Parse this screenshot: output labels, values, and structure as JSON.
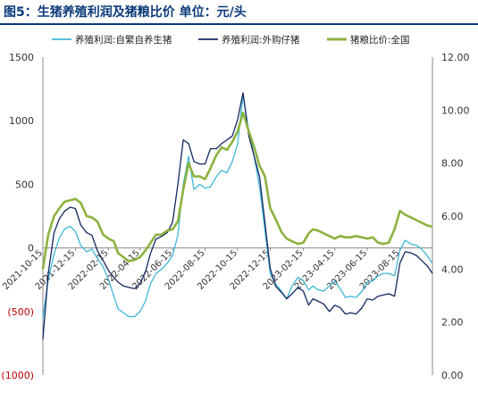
{
  "title": "图5：生猪养殖利润及猪粮比价 单位：元/头",
  "colors": {
    "title": "#0b3a7a",
    "series1": "#3fb7d6",
    "series2": "#14285f",
    "series3": "#8cb23f",
    "negative": "#c00000"
  },
  "chart_data": {
    "type": "line",
    "title": "图5：生猪养殖利润及猪粮比价 单位：元/头",
    "left_axis": {
      "range": [
        -1000,
        1500
      ],
      "ticks": [
        1500,
        1000,
        500,
        0,
        -500,
        -1000
      ],
      "tick_labels": [
        "1500",
        "1000",
        "500",
        "0",
        "(500)",
        "(1000)"
      ]
    },
    "right_axis": {
      "range": [
        0,
        12
      ],
      "ticks": [
        12,
        10,
        8,
        6,
        4,
        2,
        0
      ],
      "tick_labels": [
        "12.00",
        "10.00",
        "8.00",
        "6.00",
        "4.00",
        "2.00",
        "0.00"
      ]
    },
    "x_range": [
      "2021-10-15",
      "2023-10-15"
    ],
    "x_tick_labels": [
      "2021-10-15",
      "2021-12-15",
      "2022-02-15",
      "2022-04-15",
      "2022-06-15",
      "2022-08-15",
      "2022-10-15",
      "2022-12-15",
      "2023-02-15",
      "2023-04-15",
      "2023-06-15",
      "2023-08-15"
    ],
    "legend_position": "top",
    "grid": false,
    "series": [
      {
        "name": "养殖利润:自繁自养生猪",
        "axis": "left",
        "points": [
          [
            "2021-10-15",
            -550
          ],
          [
            "2021-10-25",
            -250
          ],
          [
            "2021-11-05",
            -50
          ],
          [
            "2021-11-15",
            80
          ],
          [
            "2021-11-25",
            150
          ],
          [
            "2021-12-05",
            170
          ],
          [
            "2021-12-15",
            130
          ],
          [
            "2021-12-25",
            20
          ],
          [
            "2022-01-05",
            -30
          ],
          [
            "2022-01-15",
            -10
          ],
          [
            "2022-01-25",
            -80
          ],
          [
            "2022-02-05",
            -150
          ],
          [
            "2022-02-15",
            -250
          ],
          [
            "2022-02-25",
            -380
          ],
          [
            "2022-03-05",
            -480
          ],
          [
            "2022-03-15",
            -510
          ],
          [
            "2022-03-25",
            -540
          ],
          [
            "2022-04-05",
            -540
          ],
          [
            "2022-04-15",
            -500
          ],
          [
            "2022-04-25",
            -420
          ],
          [
            "2022-05-05",
            -280
          ],
          [
            "2022-05-15",
            -200
          ],
          [
            "2022-05-25",
            -170
          ],
          [
            "2022-06-05",
            -120
          ],
          [
            "2022-06-15",
            -60
          ],
          [
            "2022-06-25",
            100
          ],
          [
            "2022-07-05",
            500
          ],
          [
            "2022-07-15",
            720
          ],
          [
            "2022-07-25",
            460
          ],
          [
            "2022-08-05",
            500
          ],
          [
            "2022-08-15",
            470
          ],
          [
            "2022-08-25",
            480
          ],
          [
            "2022-09-05",
            560
          ],
          [
            "2022-09-15",
            610
          ],
          [
            "2022-09-25",
            590
          ],
          [
            "2022-10-05",
            680
          ],
          [
            "2022-10-15",
            820
          ],
          [
            "2022-10-25",
            1200
          ],
          [
            "2022-11-05",
            920
          ],
          [
            "2022-11-15",
            720
          ],
          [
            "2022-11-25",
            480
          ],
          [
            "2022-12-05",
            140
          ],
          [
            "2022-12-15",
            -200
          ],
          [
            "2022-12-25",
            -280
          ],
          [
            "2023-01-05",
            -340
          ],
          [
            "2023-01-15",
            -400
          ],
          [
            "2023-01-25",
            -300
          ],
          [
            "2023-02-05",
            -230
          ],
          [
            "2023-02-15",
            -260
          ],
          [
            "2023-02-25",
            -330
          ],
          [
            "2023-03-05",
            -300
          ],
          [
            "2023-03-15",
            -330
          ],
          [
            "2023-03-25",
            -340
          ],
          [
            "2023-04-05",
            -300
          ],
          [
            "2023-04-15",
            -260
          ],
          [
            "2023-04-25",
            -320
          ],
          [
            "2023-05-05",
            -390
          ],
          [
            "2023-05-15",
            -380
          ],
          [
            "2023-05-25",
            -390
          ],
          [
            "2023-06-05",
            -340
          ],
          [
            "2023-06-15",
            -270
          ],
          [
            "2023-06-25",
            -260
          ],
          [
            "2023-07-05",
            -220
          ],
          [
            "2023-07-15",
            -200
          ],
          [
            "2023-07-25",
            -200
          ],
          [
            "2023-08-05",
            -220
          ],
          [
            "2023-08-15",
            -20
          ],
          [
            "2023-08-25",
            60
          ],
          [
            "2023-09-05",
            30
          ],
          [
            "2023-09-15",
            20
          ],
          [
            "2023-09-25",
            -10
          ],
          [
            "2023-10-05",
            -60
          ],
          [
            "2023-10-15",
            -120
          ]
        ]
      },
      {
        "name": "养殖利润:外购仔猪",
        "axis": "left",
        "points": [
          [
            "2021-10-15",
            -720
          ],
          [
            "2021-10-25",
            -200
          ],
          [
            "2021-11-05",
            120
          ],
          [
            "2021-11-15",
            230
          ],
          [
            "2021-11-25",
            290
          ],
          [
            "2021-12-05",
            320
          ],
          [
            "2021-12-15",
            310
          ],
          [
            "2021-12-25",
            180
          ],
          [
            "2022-01-05",
            120
          ],
          [
            "2022-01-15",
            100
          ],
          [
            "2022-01-25",
            -20
          ],
          [
            "2022-02-05",
            -100
          ],
          [
            "2022-02-15",
            -180
          ],
          [
            "2022-02-25",
            -230
          ],
          [
            "2022-03-05",
            -270
          ],
          [
            "2022-03-15",
            -300
          ],
          [
            "2022-03-25",
            -310
          ],
          [
            "2022-04-05",
            -320
          ],
          [
            "2022-04-15",
            -280
          ],
          [
            "2022-04-25",
            -190
          ],
          [
            "2022-05-05",
            -40
          ],
          [
            "2022-05-15",
            70
          ],
          [
            "2022-05-25",
            90
          ],
          [
            "2022-06-05",
            120
          ],
          [
            "2022-06-15",
            200
          ],
          [
            "2022-06-25",
            500
          ],
          [
            "2022-07-05",
            850
          ],
          [
            "2022-07-15",
            820
          ],
          [
            "2022-07-25",
            680
          ],
          [
            "2022-08-05",
            660
          ],
          [
            "2022-08-15",
            660
          ],
          [
            "2022-08-25",
            780
          ],
          [
            "2022-09-05",
            780
          ],
          [
            "2022-09-15",
            820
          ],
          [
            "2022-09-25",
            850
          ],
          [
            "2022-10-05",
            880
          ],
          [
            "2022-10-15",
            1010
          ],
          [
            "2022-10-25",
            1220
          ],
          [
            "2022-11-05",
            880
          ],
          [
            "2022-11-15",
            720
          ],
          [
            "2022-11-25",
            560
          ],
          [
            "2022-12-05",
            200
          ],
          [
            "2022-12-15",
            -160
          ],
          [
            "2022-12-25",
            -300
          ],
          [
            "2023-01-05",
            -350
          ],
          [
            "2023-01-15",
            -400
          ],
          [
            "2023-01-25",
            -360
          ],
          [
            "2023-02-05",
            -310
          ],
          [
            "2023-02-15",
            -340
          ],
          [
            "2023-02-25",
            -450
          ],
          [
            "2023-03-05",
            -400
          ],
          [
            "2023-03-15",
            -420
          ],
          [
            "2023-03-25",
            -440
          ],
          [
            "2023-04-05",
            -500
          ],
          [
            "2023-04-15",
            -450
          ],
          [
            "2023-04-25",
            -470
          ],
          [
            "2023-05-05",
            -520
          ],
          [
            "2023-05-15",
            -510
          ],
          [
            "2023-05-25",
            -520
          ],
          [
            "2023-06-05",
            -470
          ],
          [
            "2023-06-15",
            -400
          ],
          [
            "2023-06-25",
            -410
          ],
          [
            "2023-07-05",
            -380
          ],
          [
            "2023-07-15",
            -370
          ],
          [
            "2023-07-25",
            -360
          ],
          [
            "2023-08-05",
            -380
          ],
          [
            "2023-08-15",
            -120
          ],
          [
            "2023-08-25",
            -30
          ],
          [
            "2023-09-05",
            -40
          ],
          [
            "2023-09-15",
            -60
          ],
          [
            "2023-09-25",
            -100
          ],
          [
            "2023-10-05",
            -140
          ],
          [
            "2023-10-15",
            -200
          ]
        ]
      },
      {
        "name": "猪粮比价:全国",
        "axis": "right",
        "points": [
          [
            "2021-10-15",
            4.0
          ],
          [
            "2021-10-25",
            5.3
          ],
          [
            "2021-11-05",
            6.0
          ],
          [
            "2021-11-15",
            6.3
          ],
          [
            "2021-11-25",
            6.55
          ],
          [
            "2021-12-05",
            6.6
          ],
          [
            "2021-12-15",
            6.65
          ],
          [
            "2021-12-25",
            6.5
          ],
          [
            "2022-01-05",
            6.0
          ],
          [
            "2022-01-15",
            5.95
          ],
          [
            "2022-01-25",
            5.8
          ],
          [
            "2022-02-05",
            5.3
          ],
          [
            "2022-02-15",
            5.15
          ],
          [
            "2022-02-25",
            5.05
          ],
          [
            "2022-03-05",
            4.6
          ],
          [
            "2022-03-15",
            4.45
          ],
          [
            "2022-03-25",
            4.3
          ],
          [
            "2022-04-05",
            4.35
          ],
          [
            "2022-04-15",
            4.45
          ],
          [
            "2022-04-25",
            4.7
          ],
          [
            "2022-05-05",
            5.0
          ],
          [
            "2022-05-15",
            5.3
          ],
          [
            "2022-05-25",
            5.3
          ],
          [
            "2022-06-05",
            5.45
          ],
          [
            "2022-06-15",
            5.5
          ],
          [
            "2022-06-25",
            5.8
          ],
          [
            "2022-07-05",
            7.0
          ],
          [
            "2022-07-15",
            8.0
          ],
          [
            "2022-07-25",
            7.5
          ],
          [
            "2022-08-05",
            7.5
          ],
          [
            "2022-08-15",
            7.4
          ],
          [
            "2022-08-25",
            7.8
          ],
          [
            "2022-09-05",
            8.3
          ],
          [
            "2022-09-15",
            8.6
          ],
          [
            "2022-09-25",
            8.5
          ],
          [
            "2022-10-05",
            8.8
          ],
          [
            "2022-10-15",
            9.2
          ],
          [
            "2022-10-25",
            9.9
          ],
          [
            "2022-11-05",
            9.2
          ],
          [
            "2022-11-15",
            8.6
          ],
          [
            "2022-11-25",
            7.9
          ],
          [
            "2022-12-05",
            7.5
          ],
          [
            "2022-12-15",
            6.3
          ],
          [
            "2022-12-25",
            5.9
          ],
          [
            "2023-01-05",
            5.4
          ],
          [
            "2023-01-15",
            5.15
          ],
          [
            "2023-01-25",
            5.05
          ],
          [
            "2023-02-05",
            4.95
          ],
          [
            "2023-02-15",
            5.0
          ],
          [
            "2023-02-25",
            5.35
          ],
          [
            "2023-03-05",
            5.5
          ],
          [
            "2023-03-15",
            5.45
          ],
          [
            "2023-03-25",
            5.35
          ],
          [
            "2023-04-05",
            5.25
          ],
          [
            "2023-04-15",
            5.15
          ],
          [
            "2023-04-25",
            5.25
          ],
          [
            "2023-05-05",
            5.2
          ],
          [
            "2023-05-15",
            5.2
          ],
          [
            "2023-05-25",
            5.25
          ],
          [
            "2023-06-05",
            5.2
          ],
          [
            "2023-06-15",
            5.15
          ],
          [
            "2023-06-25",
            5.2
          ],
          [
            "2023-07-05",
            5.0
          ],
          [
            "2023-07-15",
            4.95
          ],
          [
            "2023-07-25",
            5.0
          ],
          [
            "2023-08-05",
            5.5
          ],
          [
            "2023-08-15",
            6.2
          ],
          [
            "2023-08-25",
            6.05
          ],
          [
            "2023-09-05",
            5.95
          ],
          [
            "2023-09-15",
            5.85
          ],
          [
            "2023-09-25",
            5.75
          ],
          [
            "2023-10-05",
            5.65
          ],
          [
            "2023-10-15",
            5.6
          ]
        ]
      }
    ]
  }
}
